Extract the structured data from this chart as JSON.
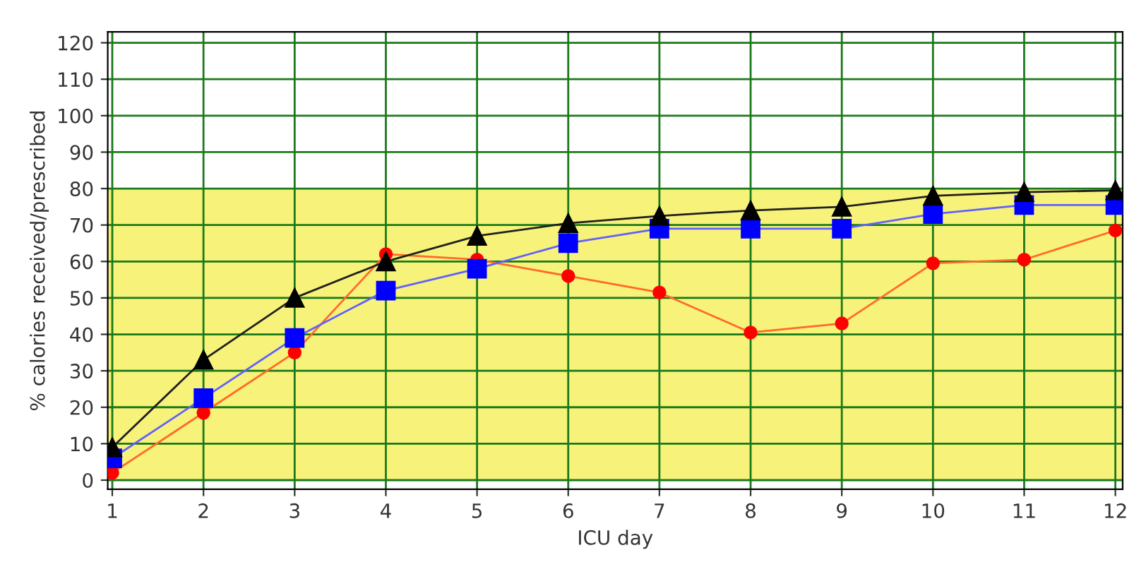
{
  "chart_data": {
    "type": "line",
    "xlabel": "ICU day",
    "ylabel": "% calories received/prescribed",
    "x": [
      1,
      2,
      3,
      4,
      5,
      6,
      7,
      8,
      9,
      10,
      11,
      12
    ],
    "series": [
      {
        "color": "#000000",
        "marker": "triangle",
        "values": [
          9,
          33,
          50,
          60,
          67,
          70.5,
          72.5,
          74,
          75,
          78,
          79,
          79.5
        ]
      },
      {
        "color": "#0000ff",
        "marker": "square",
        "values": [
          6,
          22.5,
          39,
          52,
          58,
          65,
          69,
          69,
          69,
          73,
          75.5,
          75.5
        ]
      },
      {
        "color": "#ff0000",
        "marker": "circle",
        "values": [
          2,
          18.5,
          35,
          62,
          60.5,
          56,
          51.5,
          40.5,
          43,
          59.5,
          60.5,
          68.5
        ]
      }
    ],
    "xlim": [
      0.95,
      12.08
    ],
    "ylim": [
      -2.5,
      123
    ],
    "xticks": [
      1,
      2,
      3,
      4,
      5,
      6,
      7,
      8,
      9,
      10,
      11,
      12
    ],
    "yticks": [
      0,
      10,
      20,
      30,
      40,
      50,
      60,
      70,
      80,
      90,
      100,
      110,
      120
    ],
    "bands": [
      {
        "axis": "y",
        "from": 0,
        "to": 80,
        "color": "#f7f27a"
      }
    ],
    "grid": true,
    "legend": false,
    "line_style": "solid"
  }
}
